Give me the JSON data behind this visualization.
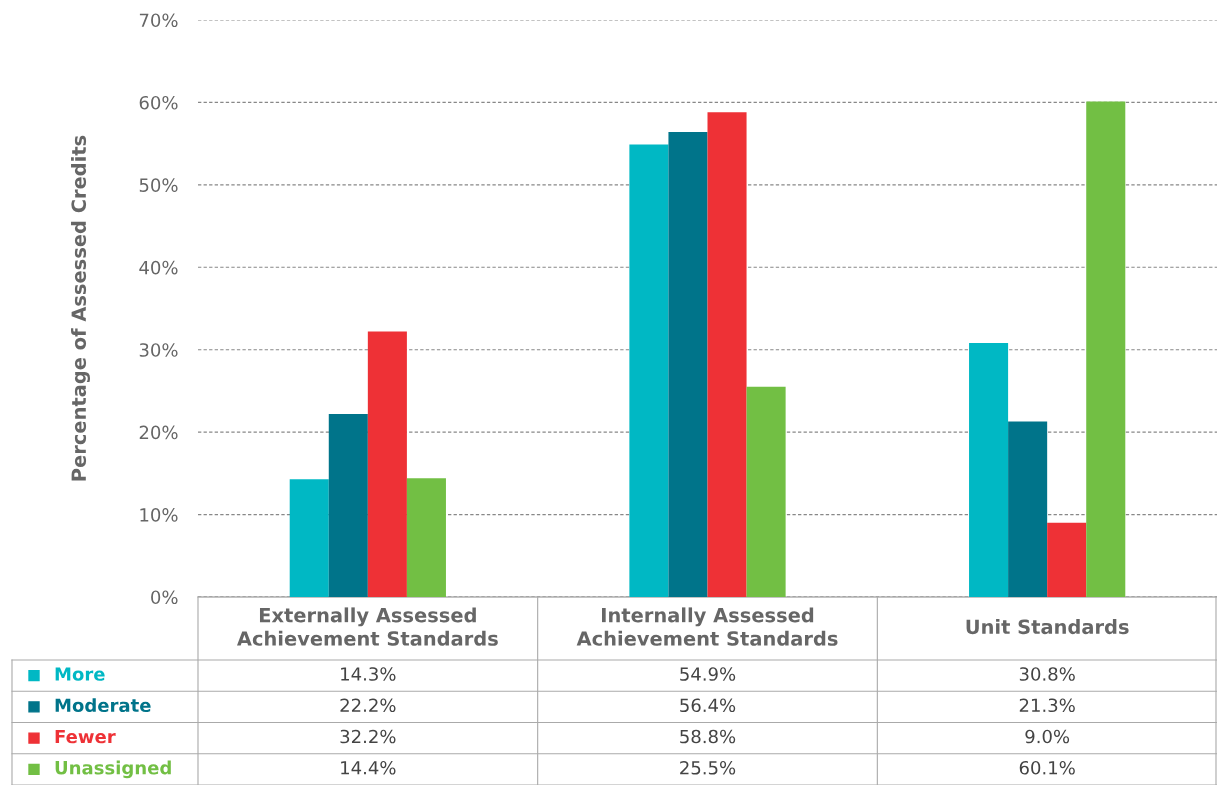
{
  "chart_data": {
    "type": "bar",
    "ylabel": "Percentage of Assessed Credits",
    "categories": [
      "Externally Assessed\nAchievement Standards",
      "Internally Assessed\nAchievement Standards",
      "Unit Standards"
    ],
    "series": [
      {
        "name": "More",
        "color": "#00b8c4",
        "values": [
          14.3,
          54.9,
          30.8
        ],
        "value_labels": [
          "14.3%",
          "54.9%",
          "30.8%"
        ]
      },
      {
        "name": "Moderate",
        "color": "#00748a",
        "values": [
          22.2,
          56.4,
          21.3
        ],
        "value_labels": [
          "22.2%",
          "56.4%",
          "21.3%"
        ]
      },
      {
        "name": "Fewer",
        "color": "#ee3136",
        "values": [
          32.2,
          58.8,
          9.0
        ],
        "value_labels": [
          "32.2%",
          "58.8%",
          "9.0%"
        ]
      },
      {
        "name": "Unassigned",
        "color": "#72bf44",
        "values": [
          14.4,
          25.5,
          60.1
        ],
        "value_labels": [
          "14.4%",
          "25.5%",
          "60.1%"
        ]
      }
    ],
    "ylim": [
      0,
      70
    ],
    "yticks": [
      {
        "value": 0,
        "label": "0%"
      },
      {
        "value": 10,
        "label": "10%"
      },
      {
        "value": 20,
        "label": "20%"
      },
      {
        "value": 30,
        "label": "30%"
      },
      {
        "value": 40,
        "label": "40%"
      },
      {
        "value": 50,
        "label": "50%"
      },
      {
        "value": 60,
        "label": "60%"
      },
      {
        "value": 70,
        "label": "70%"
      }
    ],
    "grid": "y",
    "legend": "bottom left"
  }
}
